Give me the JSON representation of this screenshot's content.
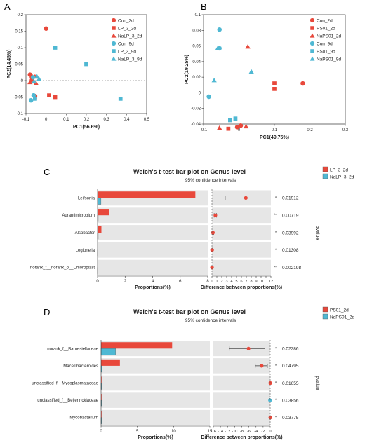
{
  "panels": {
    "A": {
      "label": "A"
    },
    "B": {
      "label": "B"
    },
    "C": {
      "label": "C"
    },
    "D": {
      "label": "D"
    }
  },
  "colors": {
    "red": "#e8483b",
    "blue": "#4fb8d3",
    "bar_bg": "#e6e6e6"
  },
  "chart_data": [
    {
      "type": "scatter",
      "panel": "A",
      "xlabel": "PC1(56.6%)",
      "ylabel": "PC2(14.45%)",
      "xlim": [
        -0.1,
        0.5
      ],
      "ylim": [
        -0.1,
        0.2
      ],
      "xticks": [
        "-0.1",
        "0",
        "0.1",
        "0.2",
        "0.3",
        "0.4",
        "0.5"
      ],
      "yticks": [
        "0.2",
        "0.15",
        "0.1",
        "0.05",
        "0",
        "-0.05",
        "-0.1"
      ],
      "series": [
        {
          "name": "Con_2d",
          "shape": "circle",
          "color": "#e8483b",
          "points": [
            [
              0,
              0.158
            ],
            [
              -0.08,
              0.018
            ],
            [
              -0.07,
              0.002
            ],
            [
              -0.055,
              -0.047
            ]
          ]
        },
        {
          "name": "LP_3_2d",
          "shape": "square",
          "color": "#e8483b",
          "points": [
            [
              0.015,
              -0.045
            ],
            [
              0.045,
              -0.05
            ],
            [
              -0.055,
              -0.05
            ]
          ]
        },
        {
          "name": "NaLP_3_2d",
          "shape": "triangle",
          "color": "#e8483b",
          "points": [
            [
              -0.07,
              0.014
            ],
            [
              -0.055,
              0.012
            ],
            [
              -0.08,
              -0.005
            ],
            [
              -0.05,
              -0.008
            ]
          ]
        },
        {
          "name": "Con_9d",
          "shape": "circle",
          "color": "#4fb8d3",
          "points": [
            [
              -0.062,
              -0.045
            ],
            [
              -0.075,
              -0.06
            ],
            [
              -0.065,
              0.01
            ]
          ]
        },
        {
          "name": "LP_3_9d",
          "shape": "square",
          "color": "#4fb8d3",
          "points": [
            [
              0.045,
              0.1
            ],
            [
              0.2,
              0.05
            ],
            [
              0.37,
              -0.055
            ],
            [
              -0.055,
              -0.055
            ]
          ]
        },
        {
          "name": "NaLP_3_9d",
          "shape": "triangle",
          "color": "#4fb8d3",
          "points": [
            [
              -0.045,
              0.012
            ],
            [
              -0.035,
              0.005
            ],
            [
              -0.06,
              -0.003
            ]
          ]
        }
      ]
    },
    {
      "type": "scatter",
      "panel": "B",
      "xlabel": "PC1(49.75%)",
      "ylabel": "PC2(19.25%)",
      "xlim": [
        -0.1,
        0.3
      ],
      "ylim": [
        -0.04,
        0.1
      ],
      "xticks": [
        "-0.1",
        "0",
        "0.1",
        "0.2",
        "0.3"
      ],
      "yticks": [
        "0.1",
        "0.08",
        "0.06",
        "0.04",
        "0.02",
        "0",
        "-0.02",
        "-0.04"
      ],
      "series": [
        {
          "name": "Con_2d",
          "shape": "circle",
          "color": "#e8483b",
          "points": [
            [
              0.18,
              0.012
            ],
            [
              0.005,
              -0.042
            ],
            [
              -0.005,
              -0.044
            ]
          ]
        },
        {
          "name": "PS01_2d",
          "shape": "square",
          "color": "#e8483b",
          "points": [
            [
              0.1,
              0.012
            ],
            [
              0.1,
              0.005
            ],
            [
              -0.03,
              -0.046
            ]
          ]
        },
        {
          "name": "NaPS01_2d",
          "shape": "triangle",
          "color": "#e8483b",
          "points": [
            [
              0.025,
              0.059
            ],
            [
              -0.055,
              -0.045
            ],
            [
              0.02,
              -0.043
            ]
          ]
        },
        {
          "name": "Con_9d",
          "shape": "circle",
          "color": "#4fb8d3",
          "points": [
            [
              -0.055,
              0.081
            ],
            [
              -0.055,
              0.057
            ],
            [
              -0.085,
              -0.005
            ]
          ]
        },
        {
          "name": "PS01_9d",
          "shape": "square",
          "color": "#4fb8d3",
          "points": [
            [
              -0.025,
              -0.035
            ],
            [
              -0.01,
              -0.033
            ]
          ]
        },
        {
          "name": "NaPS01_9d",
          "shape": "triangle",
          "color": "#4fb8d3",
          "points": [
            [
              0.035,
              0.027
            ],
            [
              -0.06,
              0.057
            ],
            [
              -0.07,
              0.016
            ]
          ]
        }
      ]
    },
    {
      "type": "bar",
      "panel": "C",
      "title": "Welch's t-test bar plot on Genus level",
      "subtitle": "95% confidence intervals",
      "legend": [
        "LP_3_2d",
        "NaLP_3_2d"
      ],
      "categories": [
        "Leifsonia",
        "Aurantimicrobium",
        "Alsobacter",
        "Legionella",
        "norank_f__norank_o__Chloroplast"
      ],
      "group1": [
        7.1,
        0.85,
        0.28,
        0.05,
        0.03
      ],
      "group2": [
        0.25,
        0.05,
        0.05,
        0.02,
        0.02
      ],
      "diff": [
        6.9,
        0.7,
        0.2,
        0.03,
        0.01
      ],
      "ci_low": [
        2.7,
        0.45,
        0.05,
        0.0,
        0.0
      ],
      "ci_high": [
        10.8,
        0.95,
        0.35,
        0.05,
        0.02
      ],
      "diff_color": [
        "#e8483b",
        "#e8483b",
        "#e8483b",
        "#e8483b",
        "#e8483b"
      ],
      "stars": [
        "*",
        "**",
        "*",
        "*",
        "**"
      ],
      "pvalues": [
        "0.01912",
        "0.00719",
        "0.03992",
        "0.01308",
        "0.002198"
      ],
      "xlabel": "Proportions(%)",
      "diff_xlabel": "Difference between proportions(%)",
      "xlim": [
        0,
        8
      ],
      "xticks": [
        "0",
        "2",
        "4",
        "6",
        "8"
      ],
      "diff_xlim": [
        0,
        12
      ],
      "diff_xticks": [
        "0",
        "1",
        "2",
        "3",
        "4",
        "5",
        "6",
        "7",
        "8",
        "9",
        "10",
        "11",
        "12"
      ],
      "p_axis_label": "pvalue"
    },
    {
      "type": "bar",
      "panel": "D",
      "title": "Welch's t-test bar plot on Genus level",
      "subtitle": "95% confidence intervals",
      "legend": [
        "PS01_2d",
        "NaPS01_2d"
      ],
      "categories": [
        "norank_f__Barnesiellaceae",
        "Macellibacteroides",
        "unclassified_f__Mycoplasmataceae",
        "unclassified_f__Beijerinckiaceae",
        "Mycobacterium"
      ],
      "group1": [
        9.8,
        2.6,
        0.05,
        0.03,
        0.05
      ],
      "group2": [
        2.0,
        0.1,
        0.02,
        0.08,
        0.02
      ],
      "diff": [
        -6.1,
        -2.4,
        0.03,
        -0.05,
        0.03
      ],
      "ci_low": [
        -11.5,
        -4.2,
        0.0,
        -0.1,
        0.0
      ],
      "ci_high": [
        -1.5,
        -0.8,
        0.05,
        0.0,
        0.05
      ],
      "diff_color": [
        "#e8483b",
        "#e8483b",
        "#e8483b",
        "#4fb8d3",
        "#e8483b"
      ],
      "stars": [
        "*",
        "*",
        "*",
        "*",
        "*"
      ],
      "pvalues": [
        "0.02286",
        "0.04795",
        "0.01655",
        "0.03856",
        "0.03775"
      ],
      "xlabel": "Proportions(%)",
      "diff_xlabel": "Difference between proportions(%)",
      "xlim": [
        0,
        15
      ],
      "xticks": [
        "0",
        "5",
        "10",
        "15"
      ],
      "diff_xlim": [
        -16,
        0
      ],
      "diff_xticks": [
        "-16",
        "-14",
        "-12",
        "-10",
        "-8",
        "-6",
        "-4",
        "-2",
        "0"
      ],
      "p_axis_label": "pvalue"
    }
  ]
}
